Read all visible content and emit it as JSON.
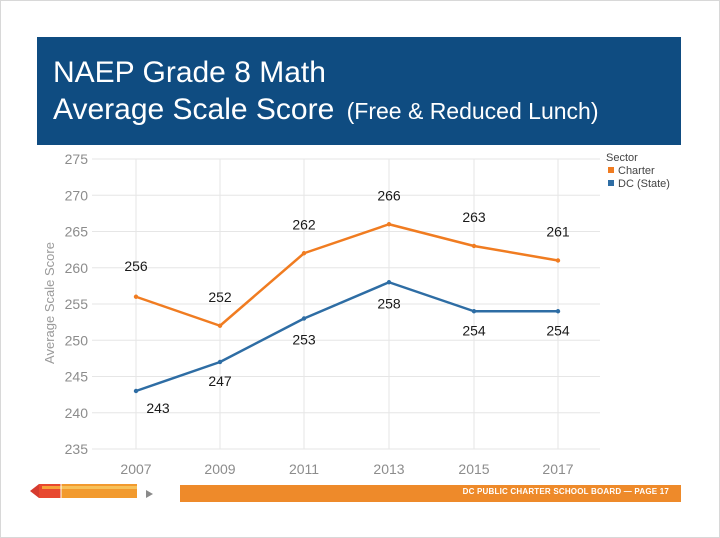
{
  "title": {
    "line1": "NAEP Grade 8 Math",
    "line2_main": "Average Scale Score",
    "line2_sub": "(Free & Reduced Lunch)"
  },
  "footer": {
    "text": "DC PUBLIC CHARTER SCHOOL BOARD — PAGE 17"
  },
  "icons": [
    "pencil-icon",
    "play-icon"
  ],
  "chart_data": {
    "type": "line",
    "x": [
      "2007",
      "2009",
      "2011",
      "2013",
      "2015",
      "2017"
    ],
    "ylabel": "Average Scale Score",
    "xlabel": "",
    "ylim": [
      235,
      275
    ],
    "yticks": [
      235,
      240,
      245,
      250,
      255,
      260,
      265,
      270,
      275
    ],
    "grid": true,
    "legend": {
      "title": "Sector",
      "placement": "top-right"
    },
    "series": [
      {
        "name": "Charter",
        "color": "#f07c21",
        "values": [
          256,
          252,
          262,
          266,
          263,
          261
        ]
      },
      {
        "name": "DC (State)",
        "color": "#2e6da4",
        "values": [
          243,
          247,
          253,
          258,
          254,
          254
        ]
      }
    ]
  }
}
